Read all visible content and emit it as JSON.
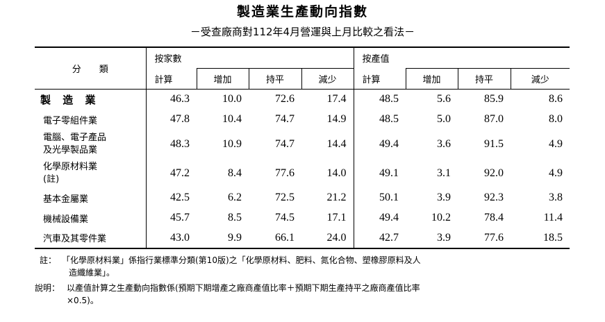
{
  "title": "製造業生產動向指數",
  "subtitle": "－受查廠商對112年4月營運與上月比較之看法－",
  "table": {
    "category_header": "分　　類",
    "group1_label": "按家數",
    "group2_label": "按產值",
    "calc_label": "計算",
    "col_increase": "增加",
    "col_flat": "持平",
    "col_decrease": "減少",
    "rows": [
      {
        "name": "製 造 業",
        "v": [
          "46.3",
          "10.0",
          "72.6",
          "17.4",
          "48.5",
          "5.6",
          "85.9",
          "8.6"
        ]
      },
      {
        "name": "電子零組件業",
        "v": [
          "47.8",
          "10.4",
          "74.7",
          "14.9",
          "48.5",
          "5.0",
          "87.0",
          "8.0"
        ]
      },
      {
        "name_line1": "電腦、電子產品",
        "name_line2": "及光學製品業",
        "v": [
          "48.3",
          "10.9",
          "74.7",
          "14.4",
          "49.4",
          "3.6",
          "91.5",
          "4.9"
        ]
      },
      {
        "name_line1": "化學原材料業",
        "name_line2": "(註)",
        "v": [
          "47.2",
          "8.4",
          "77.6",
          "14.0",
          "49.1",
          "3.1",
          "92.0",
          "4.9"
        ]
      },
      {
        "name": "基本金屬業",
        "v": [
          "42.5",
          "6.2",
          "72.5",
          "21.2",
          "50.1",
          "3.9",
          "92.3",
          "3.8"
        ]
      },
      {
        "name": "機械設備業",
        "v": [
          "45.7",
          "8.5",
          "74.5",
          "17.1",
          "49.4",
          "10.2",
          "78.4",
          "11.4"
        ]
      },
      {
        "name": "汽車及其零件業",
        "v": [
          "43.0",
          "9.9",
          "66.1",
          "24.0",
          "42.7",
          "3.9",
          "77.6",
          "18.5"
        ]
      }
    ]
  },
  "note1_label": "註：",
  "note1_line1": "「化學原材料業」係指行業標準分類(第10版)之「化學原材料、肥料、氮化合物、塑橡膠原料及人",
  "note1_line2": "造纖維業」。",
  "note2_label": "說明：",
  "note2_line1": "以產值計算之生產動向指數係(預期下期增產之廠商產值比率＋預期下期生產持平之廠商產值比率",
  "note2_line2": "×0.5)。"
}
